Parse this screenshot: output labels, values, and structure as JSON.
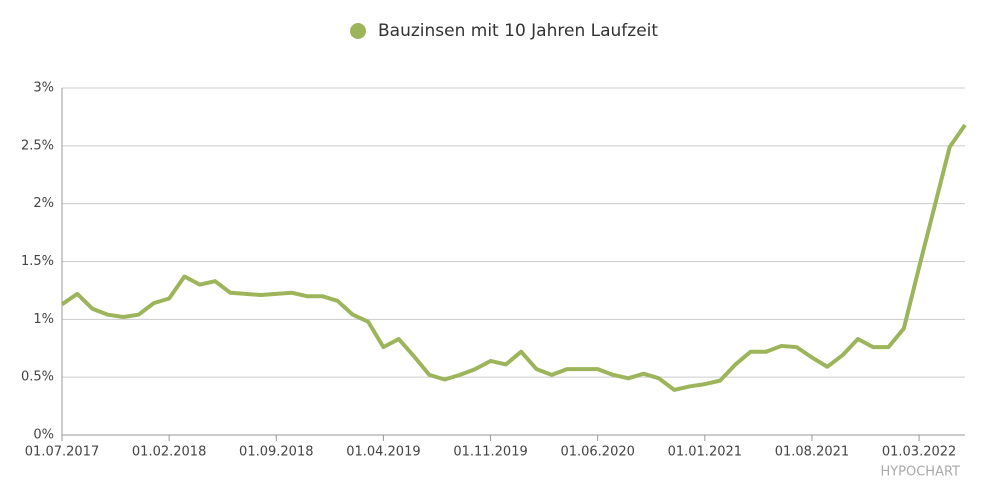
{
  "chart_data": {
    "type": "line",
    "legend": "top",
    "grid": true,
    "watermark": "HYPOCHART",
    "categories": [
      "01.07.2017",
      null,
      null,
      null,
      null,
      null,
      null,
      "01.02.2018",
      null,
      null,
      null,
      null,
      null,
      null,
      "01.09.2018",
      null,
      null,
      null,
      null,
      null,
      null,
      "01.04.2019",
      null,
      null,
      null,
      null,
      null,
      null,
      "01.11.2019",
      null,
      null,
      null,
      null,
      null,
      null,
      "01.06.2020",
      null,
      null,
      null,
      null,
      null,
      null,
      "01.01.2021",
      null,
      null,
      null,
      null,
      null,
      null,
      "01.08.2021",
      null,
      null,
      null,
      null,
      null,
      null,
      "01.03.2022",
      null,
      null,
      null
    ],
    "series": [
      {
        "name": "Bauzinsen mit 10 Jahren Laufzeit",
        "color": "#9cb55a",
        "values": [
          1.13,
          1.22,
          1.09,
          1.04,
          1.02,
          1.04,
          1.14,
          1.18,
          1.37,
          1.3,
          1.33,
          1.23,
          1.22,
          1.21,
          1.22,
          1.23,
          1.2,
          1.2,
          1.16,
          1.04,
          0.98,
          0.76,
          0.83,
          0.68,
          0.52,
          0.48,
          0.52,
          0.57,
          0.64,
          0.61,
          0.72,
          0.57,
          0.52,
          0.57,
          0.57,
          0.57,
          0.52,
          0.49,
          0.53,
          0.49,
          0.39,
          0.42,
          0.44,
          0.47,
          0.61,
          0.72,
          0.72,
          0.77,
          0.76,
          0.67,
          0.59,
          0.69,
          0.83,
          0.76,
          0.76,
          0.92,
          1.45,
          1.97,
          2.49,
          2.68
        ]
      }
    ],
    "ylim": [
      0,
      3
    ],
    "yticks": [
      {
        "value": 0,
        "label": "0%"
      },
      {
        "value": 0.5,
        "label": "0.5%"
      },
      {
        "value": 1,
        "label": "1%"
      },
      {
        "value": 1.5,
        "label": "1.5%"
      },
      {
        "value": 2,
        "label": "2%"
      },
      {
        "value": 2.5,
        "label": "2.5%"
      },
      {
        "value": 3,
        "label": "3%"
      }
    ]
  }
}
